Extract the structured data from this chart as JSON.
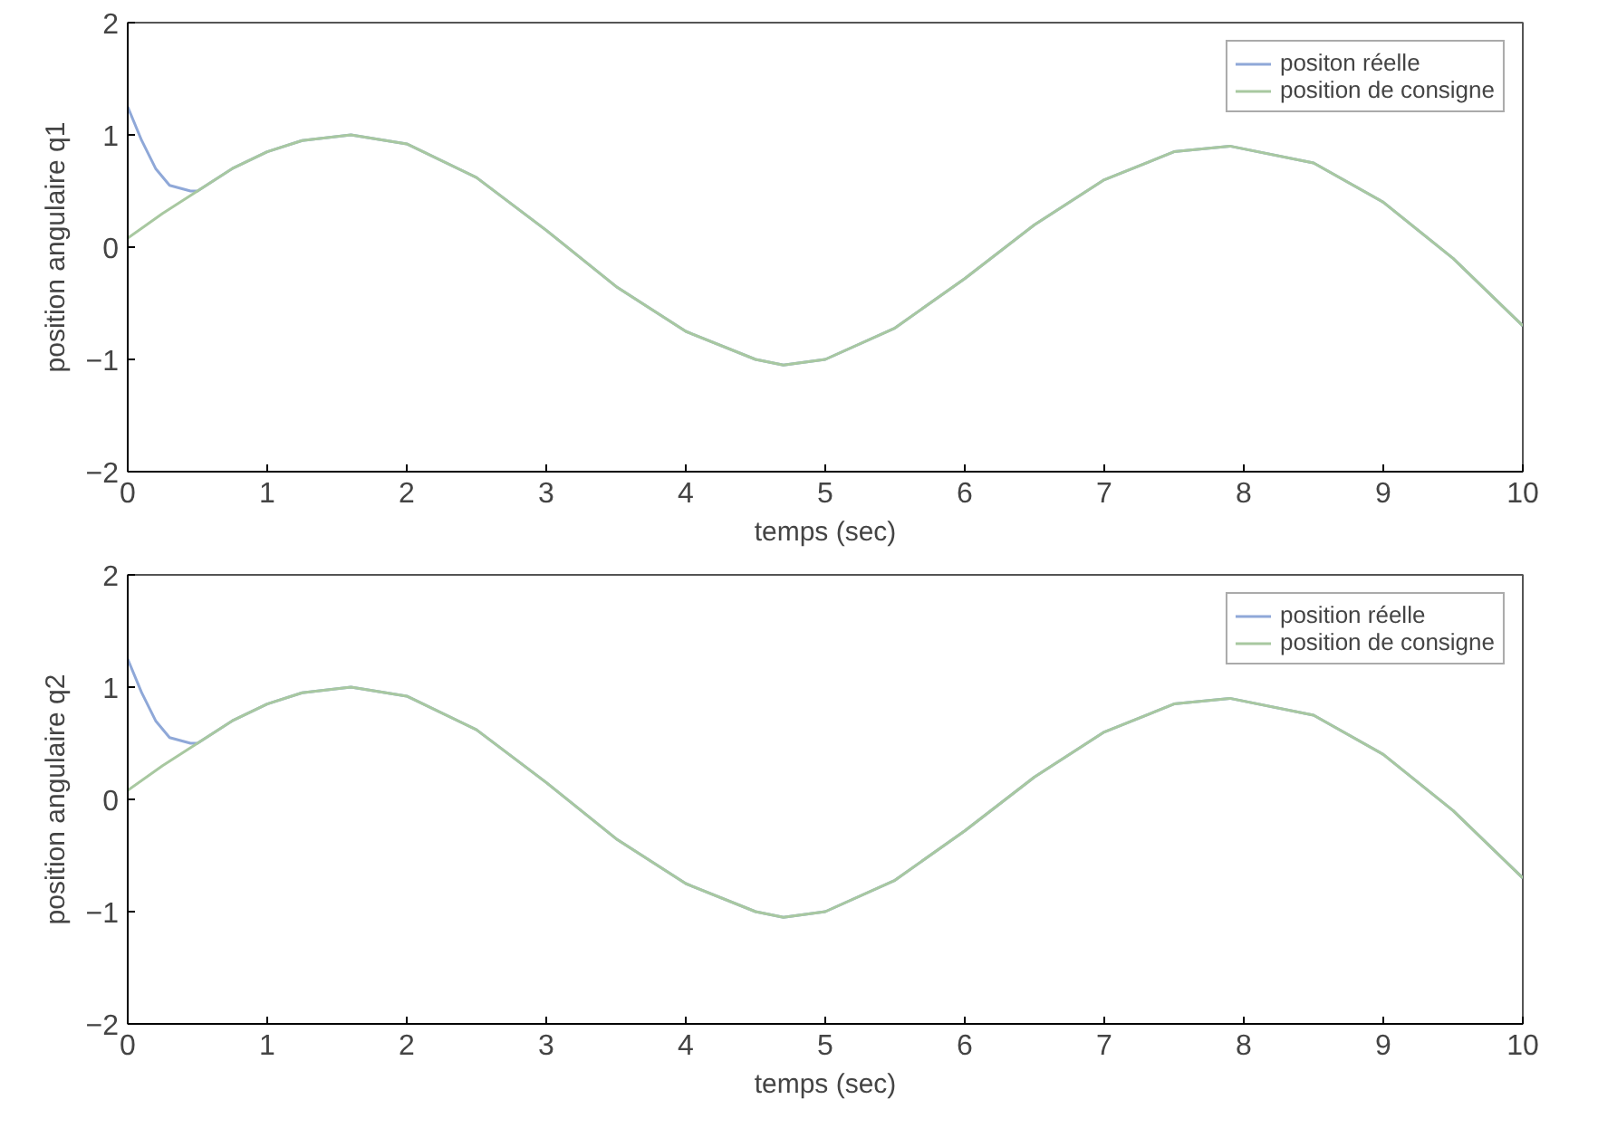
{
  "chart_data": [
    {
      "type": "line",
      "xlabel": "temps (sec)",
      "ylabel": "position angulaire q1",
      "xlim": [
        0,
        10
      ],
      "ylim": [
        -2,
        2
      ],
      "xticks": [
        0,
        1,
        2,
        3,
        4,
        5,
        6,
        7,
        8,
        9,
        10
      ],
      "yticks": [
        -2,
        -1,
        0,
        1,
        2
      ],
      "grid": false,
      "legend": "top right",
      "series": [
        {
          "name": "positon réelle",
          "color": "#8fa8d8",
          "x": [
            0,
            0.1,
            0.2,
            0.3,
            0.45,
            0.5,
            0.75,
            1,
            1.25,
            1.6,
            2,
            2.5,
            3,
            3.5,
            4,
            4.5,
            4.7,
            5,
            5.5,
            6,
            6.5,
            7,
            7.5,
            7.9,
            8.5,
            9,
            9.5,
            10
          ],
          "values": [
            1.25,
            0.95,
            0.7,
            0.55,
            0.5,
            0.5,
            0.7,
            0.85,
            0.95,
            1.0,
            0.92,
            0.62,
            0.15,
            -0.35,
            -0.75,
            -1.0,
            -1.05,
            -1.0,
            -0.72,
            -0.28,
            0.2,
            0.6,
            0.85,
            0.9,
            0.75,
            0.4,
            -0.1,
            -0.7
          ]
        },
        {
          "name": "position de consigne",
          "color": "#a8c8a0",
          "x": [
            0,
            0.25,
            0.5,
            0.75,
            1,
            1.25,
            1.6,
            2,
            2.5,
            3,
            3.5,
            4,
            4.5,
            4.7,
            5,
            5.5,
            6,
            6.5,
            7,
            7.5,
            7.9,
            8.5,
            9,
            9.5,
            10
          ],
          "values": [
            0.08,
            0.3,
            0.5,
            0.7,
            0.85,
            0.95,
            1.0,
            0.92,
            0.62,
            0.15,
            -0.35,
            -0.75,
            -1.0,
            -1.05,
            -1.0,
            -0.72,
            -0.28,
            0.2,
            0.6,
            0.85,
            0.9,
            0.75,
            0.4,
            -0.1,
            -0.7
          ]
        }
      ]
    },
    {
      "type": "line",
      "xlabel": "temps (sec)",
      "ylabel": "position angulaire q2",
      "xlim": [
        0,
        10
      ],
      "ylim": [
        -2,
        2
      ],
      "xticks": [
        0,
        1,
        2,
        3,
        4,
        5,
        6,
        7,
        8,
        9,
        10
      ],
      "yticks": [
        -2,
        -1,
        0,
        1,
        2
      ],
      "grid": false,
      "legend": "top right",
      "series": [
        {
          "name": "position réelle",
          "color": "#8fa8d8",
          "x": [
            0,
            0.1,
            0.2,
            0.3,
            0.45,
            0.5,
            0.75,
            1,
            1.25,
            1.6,
            2,
            2.5,
            3,
            3.5,
            4,
            4.5,
            4.7,
            5,
            5.5,
            6,
            6.5,
            7,
            7.5,
            7.9,
            8.5,
            9,
            9.5,
            10
          ],
          "values": [
            1.25,
            0.95,
            0.7,
            0.55,
            0.5,
            0.5,
            0.7,
            0.85,
            0.95,
            1.0,
            0.92,
            0.62,
            0.15,
            -0.35,
            -0.75,
            -1.0,
            -1.05,
            -1.0,
            -0.72,
            -0.28,
            0.2,
            0.6,
            0.85,
            0.9,
            0.75,
            0.4,
            -0.1,
            -0.7
          ]
        },
        {
          "name": "position de consigne",
          "color": "#a8c8a0",
          "x": [
            0,
            0.25,
            0.5,
            0.75,
            1,
            1.25,
            1.6,
            2,
            2.5,
            3,
            3.5,
            4,
            4.5,
            4.7,
            5,
            5.5,
            6,
            6.5,
            7,
            7.5,
            7.9,
            8.5,
            9,
            9.5,
            10
          ],
          "values": [
            0.08,
            0.3,
            0.5,
            0.7,
            0.85,
            0.95,
            1.0,
            0.92,
            0.62,
            0.15,
            -0.35,
            -0.75,
            -1.0,
            -1.05,
            -1.0,
            -0.72,
            -0.28,
            0.2,
            0.6,
            0.85,
            0.9,
            0.75,
            0.4,
            -0.1,
            -0.7
          ]
        }
      ]
    }
  ]
}
